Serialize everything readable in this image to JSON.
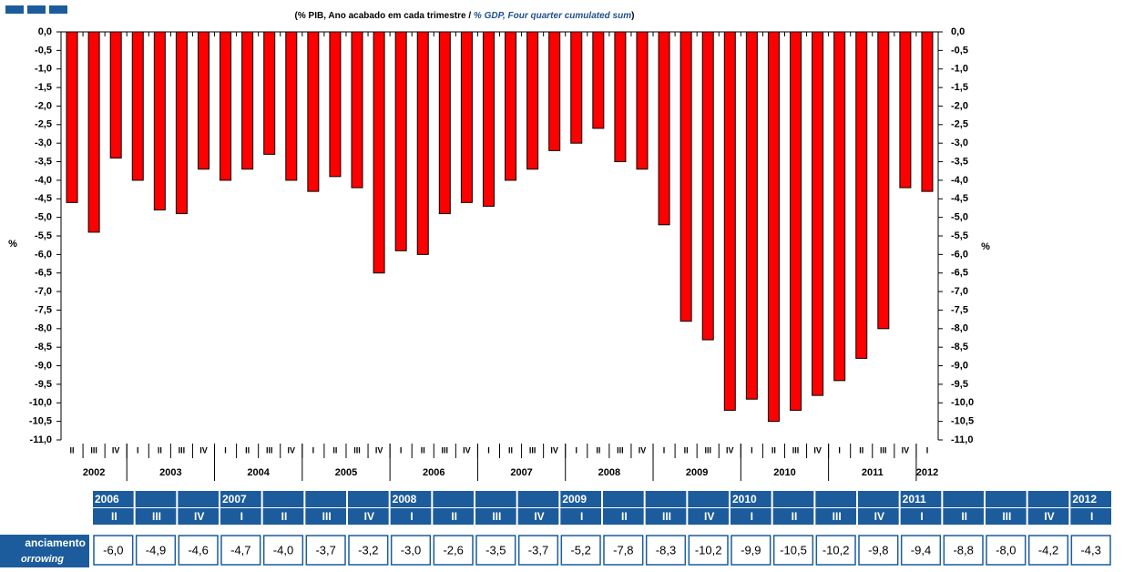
{
  "chart_data": {
    "type": "bar",
    "title": [
      "(% PIB, Ano acabado em cada trimestre / ",
      "% GDP, Four quarter cumulated sum",
      ")"
    ],
    "ylabel": "%",
    "y2label": "%",
    "color": "#ff0000",
    "categories": [
      "II",
      "III",
      "IV",
      "I",
      "II",
      "III",
      "IV",
      "I",
      "II",
      "III",
      "IV",
      "I",
      "II",
      "III",
      "IV",
      "I",
      "II",
      "III",
      "IV",
      "I",
      "II",
      "III",
      "IV",
      "I",
      "II",
      "III",
      "IV",
      "I",
      "II",
      "III",
      "IV",
      "I",
      "II",
      "III",
      "IV",
      "I",
      "II",
      "III",
      "IV",
      "I"
    ],
    "year_labels": [
      "2002",
      "2003",
      "2004",
      "2005",
      "2006",
      "2007",
      "2008",
      "2009",
      "2010",
      "2011",
      "2012"
    ],
    "values": [
      -4.6,
      -5.4,
      -3.4,
      -4.0,
      -4.8,
      -4.9,
      -3.7,
      -4.0,
      -3.7,
      -3.3,
      -4.0,
      -4.3,
      -3.9,
      -4.2,
      -6.5,
      -5.9,
      -6.0,
      -4.9,
      -4.6,
      -4.7,
      -4.0,
      -3.7,
      -3.2,
      -3.0,
      -2.6,
      -3.5,
      -3.7,
      -5.2,
      -7.8,
      -8.3,
      -10.2,
      -9.9,
      -10.5,
      -10.2,
      -9.8,
      -9.4,
      -8.8,
      -8.0,
      -4.2,
      -4.3
    ],
    "ylim": [
      0,
      -11
    ],
    "yticks": [
      {
        "value": 0,
        "label": "0,0"
      },
      {
        "value": -0.5,
        "label": "-0,5"
      },
      {
        "value": -1,
        "label": "-1,0"
      },
      {
        "value": -1.5,
        "label": "-1,5"
      },
      {
        "value": -2,
        "label": "-2,0"
      },
      {
        "value": -2.5,
        "label": "-2,5"
      },
      {
        "value": -3,
        "label": "-3,0"
      },
      {
        "value": -3.5,
        "label": "-3,5"
      },
      {
        "value": -4,
        "label": "-4,0"
      },
      {
        "value": -4.5,
        "label": "-4,5"
      },
      {
        "value": -5,
        "label": "-5,0"
      },
      {
        "value": -5.5,
        "label": "-5,5"
      },
      {
        "value": -6,
        "label": "-6,0"
      },
      {
        "value": -6.5,
        "label": "-6,5"
      },
      {
        "value": -7,
        "label": "-7,0"
      },
      {
        "value": -7.5,
        "label": "-7,5"
      },
      {
        "value": -8,
        "label": "-8,0"
      },
      {
        "value": -8.5,
        "label": "-8,5"
      },
      {
        "value": -9,
        "label": "-9,0"
      },
      {
        "value": -9.5,
        "label": "-9,5"
      },
      {
        "value": -10,
        "label": "-10,0"
      },
      {
        "value": -10.5,
        "label": "-10,5"
      },
      {
        "value": -11,
        "label": "-11,0"
      }
    ]
  },
  "table": {
    "years": [
      "2006",
      null,
      null,
      "2007",
      null,
      null,
      null,
      "2008",
      null,
      null,
      null,
      "2009",
      null,
      null,
      null,
      "2010",
      null,
      null,
      null,
      "2011",
      null,
      null,
      null,
      "2012"
    ],
    "quarters": [
      "II",
      "III",
      "IV",
      "I",
      "II",
      "III",
      "IV",
      "I",
      "II",
      "III",
      "IV",
      "I",
      "II",
      "III",
      "IV",
      "I",
      "II",
      "III",
      "IV",
      "I",
      "II",
      "III",
      "IV",
      "I"
    ],
    "row_label": [
      "anciamento",
      "orrowing"
    ],
    "values": [
      "-6,0",
      "-4,9",
      "-4,6",
      "-4,7",
      "-4,0",
      "-3,7",
      "-3,2",
      "-3,0",
      "-2,6",
      "-3,5",
      "-3,7",
      "-5,2",
      "-7,8",
      "-8,3",
      "-10,2",
      "-9,9",
      "-10,5",
      "-10,2",
      "-9,8",
      "-9,4",
      "-8,8",
      "-8,0",
      "-4,2",
      "-4,3"
    ]
  }
}
